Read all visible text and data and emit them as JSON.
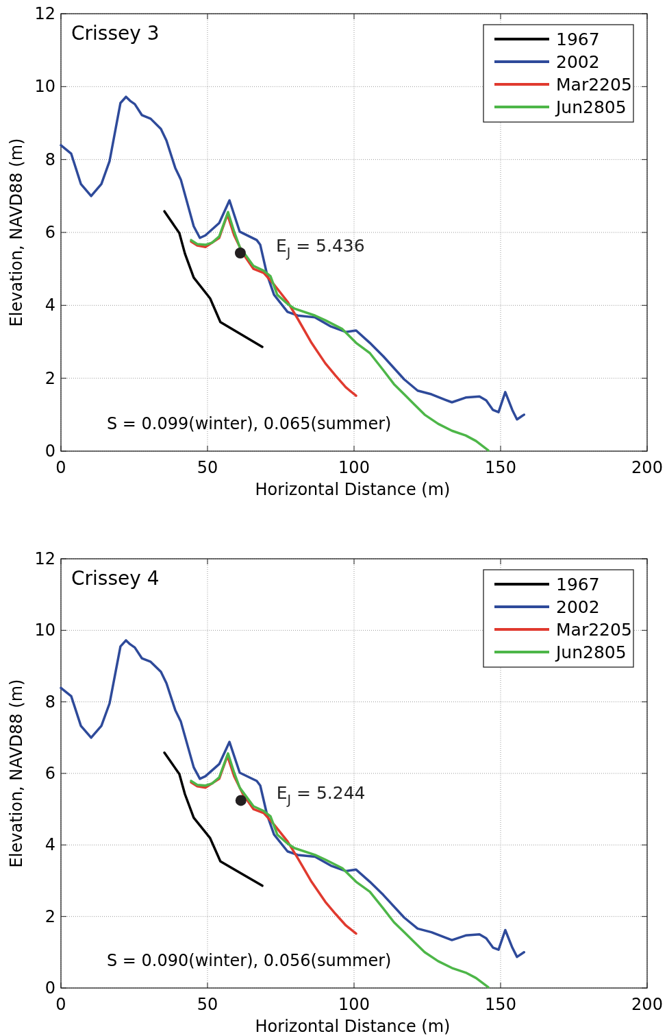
{
  "chart_data": [
    {
      "type": "line",
      "title": "Crissey 3",
      "xlabel": "Horizontal Distance (m)",
      "ylabel": "Elevation, NAVD88 (m)",
      "xlim": [
        0,
        200
      ],
      "xticks": [
        0,
        50,
        100,
        150,
        200
      ],
      "ylim": [
        0,
        12
      ],
      "yticks": [
        0,
        2,
        4,
        6,
        8,
        10,
        12
      ],
      "grid": true,
      "legend": "top right",
      "line_style": "solid",
      "annotations": [
        "S = 0.099(winter), 0.065(summer)"
      ],
      "series": [
        {
          "name": "1967",
          "color": "#000000",
          "x": [
            35.3,
            40.4,
            42.3,
            45.3,
            50.9,
            54.4,
            68.7
          ],
          "values": [
            6.58,
            5.98,
            5.42,
            4.76,
            4.19,
            3.54,
            2.86
          ]
        },
        {
          "name": "2002",
          "color": "#2e4a9a",
          "x": [
            0,
            3.5,
            6.8,
            10.3,
            13.8,
            16.6,
            20.3,
            22.2,
            23.6,
            25.2,
            27.6,
            30.6,
            34.1,
            36,
            39,
            40.9,
            45.3,
            47.4,
            49.3,
            54,
            57.5,
            61,
            66.8,
            68,
            70.3,
            72.7,
            77.3,
            80.8,
            86.7,
            92.1,
            97.2,
            100.7,
            105.4,
            110,
            117.1,
            121.7,
            126.4,
            131.1,
            133.4,
            138.1,
            142.8,
            145.1,
            147.4,
            149.3,
            151.6,
            154,
            155.6,
            158
          ],
          "values": [
            8.39,
            8.16,
            7.33,
            7.0,
            7.33,
            7.96,
            9.55,
            9.72,
            9.61,
            9.52,
            9.22,
            9.12,
            8.84,
            8.52,
            7.77,
            7.45,
            6.17,
            5.85,
            5.92,
            6.26,
            6.88,
            6.02,
            5.79,
            5.66,
            4.85,
            4.29,
            3.82,
            3.72,
            3.67,
            3.42,
            3.27,
            3.31,
            2.97,
            2.6,
            1.97,
            1.66,
            1.56,
            1.41,
            1.34,
            1.47,
            1.5,
            1.39,
            1.13,
            1.07,
            1.62,
            1.13,
            0.87,
            1.0
          ]
        },
        {
          "name": "Mar2205",
          "color": "#e03a2f",
          "x": [
            44.4,
            46.5,
            49.3,
            54,
            56.8,
            59.1,
            62.1,
            65.7,
            69.2,
            72.7,
            77.3,
            80.8,
            85.5,
            90.2,
            93.7,
            97.2,
            100.7
          ],
          "values": [
            5.75,
            5.64,
            5.6,
            5.85,
            6.49,
            5.92,
            5.42,
            5.0,
            4.89,
            4.57,
            4.1,
            3.63,
            2.97,
            2.41,
            2.07,
            1.75,
            1.52
          ]
        },
        {
          "name": "Jun2805",
          "color": "#4db648",
          "x": [
            44.4,
            46.5,
            49.3,
            51.6,
            54,
            57,
            59.1,
            61,
            65.7,
            69.2,
            71.5,
            73.8,
            77.3,
            79.7,
            86.7,
            90.2,
            96,
            100.7,
            105.4,
            110,
            113.6,
            117.1,
            120.6,
            124.1,
            128.7,
            133.4,
            138.1,
            141.6,
            145.8
          ],
          "values": [
            5.79,
            5.68,
            5.66,
            5.72,
            5.89,
            6.56,
            6.02,
            5.6,
            5.08,
            4.95,
            4.8,
            4.29,
            4.04,
            3.91,
            3.72,
            3.59,
            3.35,
            2.97,
            2.69,
            2.22,
            1.84,
            1.56,
            1.28,
            1.0,
            0.75,
            0.56,
            0.43,
            0.28,
            0.02
          ]
        },
        {
          "type": "scatter",
          "marker": "circle",
          "color": "#231f20",
          "x": [
            61.2
          ],
          "values": [
            5.436
          ],
          "value_labels": [
            "E$_{J}$ = 5.436"
          ]
        }
      ]
    },
    {
      "type": "line",
      "title": "Crissey 4",
      "xlabel": "Horizontal Distance (m)",
      "ylabel": "Elevation, NAVD88 (m)",
      "xlim": [
        0,
        200
      ],
      "xticks": [
        0,
        50,
        100,
        150,
        200
      ],
      "ylim": [
        0,
        12
      ],
      "yticks": [
        0,
        2,
        4,
        6,
        8,
        10,
        12
      ],
      "grid": true,
      "legend": "top right",
      "line_style": "solid",
      "annotations": [
        "S = 0.090(winter), 0.056(summer)"
      ],
      "series": [
        {
          "name": "1967",
          "color": "#000000",
          "x": [
            35.3,
            40.4,
            42.3,
            45.3,
            50.9,
            54.4,
            68.7
          ],
          "values": [
            6.58,
            5.98,
            5.42,
            4.76,
            4.19,
            3.54,
            2.86
          ]
        },
        {
          "name": "2002",
          "color": "#2e4a9a",
          "x": [
            0,
            3.5,
            6.8,
            10.3,
            13.8,
            16.6,
            20.3,
            22.2,
            23.6,
            25.2,
            27.6,
            30.6,
            34.1,
            36,
            39,
            40.9,
            45.3,
            47.4,
            49.3,
            54,
            57.5,
            61,
            66.8,
            68,
            70.3,
            72.7,
            77.3,
            80.8,
            86.7,
            92.1,
            97.2,
            100.7,
            105.4,
            110,
            117.1,
            121.7,
            126.4,
            131.1,
            133.4,
            138.1,
            142.8,
            145.1,
            147.4,
            149.3,
            151.6,
            154,
            155.6,
            158
          ],
          "values": [
            8.39,
            8.16,
            7.33,
            7.0,
            7.33,
            7.96,
            9.55,
            9.72,
            9.61,
            9.52,
            9.22,
            9.12,
            8.84,
            8.52,
            7.77,
            7.45,
            6.17,
            5.85,
            5.92,
            6.26,
            6.88,
            6.02,
            5.79,
            5.66,
            4.85,
            4.29,
            3.82,
            3.72,
            3.67,
            3.42,
            3.27,
            3.31,
            2.97,
            2.6,
            1.97,
            1.66,
            1.56,
            1.41,
            1.34,
            1.47,
            1.5,
            1.39,
            1.13,
            1.07,
            1.62,
            1.13,
            0.87,
            1.0
          ]
        },
        {
          "name": "Mar2205",
          "color": "#e03a2f",
          "x": [
            44.4,
            46.5,
            49.3,
            54,
            56.8,
            59.1,
            62.1,
            65.7,
            69.2,
            72.7,
            77.3,
            80.8,
            85.5,
            90.2,
            93.7,
            97.2,
            100.7
          ],
          "values": [
            5.75,
            5.64,
            5.6,
            5.85,
            6.49,
            5.92,
            5.42,
            5.0,
            4.89,
            4.57,
            4.1,
            3.63,
            2.97,
            2.41,
            2.07,
            1.75,
            1.52
          ]
        },
        {
          "name": "Jun2805",
          "color": "#4db648",
          "x": [
            44.4,
            46.5,
            49.3,
            51.6,
            54,
            57,
            59.1,
            61,
            65.7,
            69.2,
            71.5,
            73.8,
            77.3,
            79.7,
            86.7,
            90.2,
            96,
            100.7,
            105.4,
            110,
            113.6,
            117.1,
            120.6,
            124.1,
            128.7,
            133.4,
            138.1,
            141.6,
            145.8
          ],
          "values": [
            5.79,
            5.68,
            5.66,
            5.72,
            5.89,
            6.56,
            6.02,
            5.6,
            5.08,
            4.95,
            4.8,
            4.29,
            4.04,
            3.91,
            3.72,
            3.59,
            3.35,
            2.97,
            2.69,
            2.22,
            1.84,
            1.56,
            1.28,
            1.0,
            0.75,
            0.56,
            0.43,
            0.28,
            0.02
          ]
        },
        {
          "type": "scatter",
          "marker": "circle",
          "color": "#231f20",
          "x": [
            61.4
          ],
          "values": [
            5.244
          ],
          "value_labels": [
            "E$_{J}$ = 5.244"
          ]
        }
      ]
    }
  ]
}
